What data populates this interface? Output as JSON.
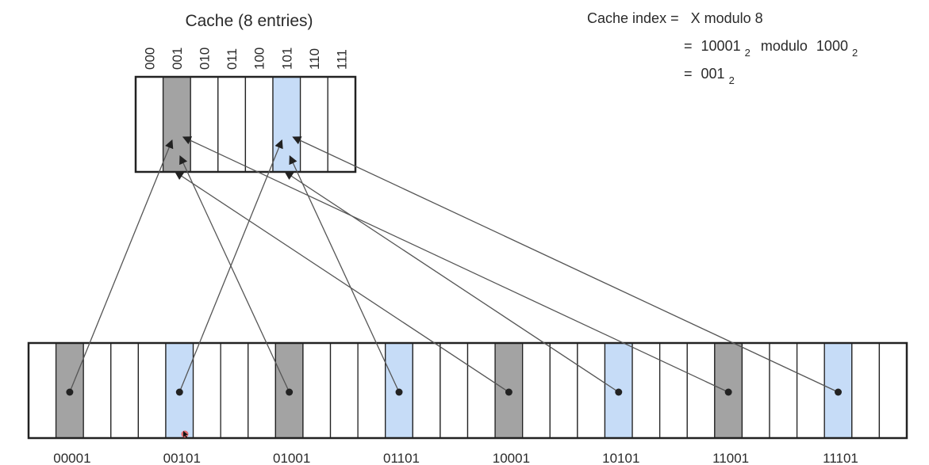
{
  "cache": {
    "title": "Cache (8 entries)",
    "indices": [
      "000",
      "001",
      "010",
      "011",
      "100",
      "101",
      "110",
      "111"
    ],
    "highlight": {
      "001": "gray",
      "101": "blue"
    }
  },
  "formula": {
    "line1_label": "Cache index =",
    "line1_value": "X modulo 8",
    "line2_eq": "=",
    "line2_a": "10001",
    "line2_sub1": "2",
    "line2_mid": "modulo",
    "line2_b": "1000",
    "line2_sub2": "2",
    "line3_eq": "=",
    "line3_value": "001",
    "line3_sub": "2"
  },
  "memory": {
    "cell_count": 32,
    "blocks": [
      {
        "cell": 1,
        "label": "00001",
        "color": "gray",
        "target": "001"
      },
      {
        "cell": 5,
        "label": "00101",
        "color": "blue",
        "target": "101"
      },
      {
        "cell": 9,
        "label": "01001",
        "color": "gray",
        "target": "001"
      },
      {
        "cell": 13,
        "label": "01101",
        "color": "blue",
        "target": "101"
      },
      {
        "cell": 17,
        "label": "10001",
        "color": "gray",
        "target": "001"
      },
      {
        "cell": 21,
        "label": "10101",
        "color": "blue",
        "target": "101"
      },
      {
        "cell": 25,
        "label": "11001",
        "color": "gray",
        "target": "001"
      },
      {
        "cell": 29,
        "label": "11101",
        "color": "blue",
        "target": "101"
      }
    ]
  },
  "colors": {
    "gray": "#a3a3a3",
    "blue": "#c6dcf7",
    "white": "#ffffff",
    "line": "#555555",
    "cursor": "#e35656"
  },
  "icons": {
    "cursor": "mouse-pointer-icon"
  }
}
